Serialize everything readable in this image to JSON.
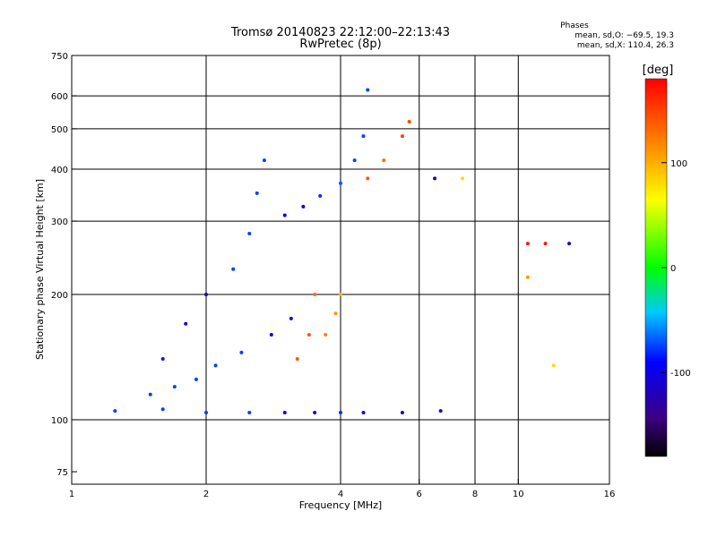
{
  "chart_data": {
    "type": "scatter",
    "title": "Tromsø 20140823 22:12:00–22:13:43",
    "subtitle": "RwPretec (8p)",
    "xlabel": "Frequency [MHz]",
    "ylabel": "Stationary phase Virtual Height [km]",
    "x_scale": "log",
    "y_scale": "log",
    "xlim": [
      1,
      16
    ],
    "ylim": [
      70,
      750
    ],
    "x_ticks": [
      1,
      2,
      4,
      6,
      8,
      10,
      16
    ],
    "y_ticks": [
      75,
      100,
      200,
      300,
      400,
      500,
      600,
      750
    ],
    "x_grid": [
      2,
      4,
      6,
      8,
      10
    ],
    "y_grid": [
      100,
      200,
      300,
      400,
      500,
      600
    ],
    "grid": true,
    "phases_box": {
      "title": "Phases",
      "line1": "mean, sd,O: −69.5, 19.3",
      "line2": "mean, sd,X: 110.4, 26.3"
    },
    "colorbar": {
      "label": "[deg]",
      "range": [
        -180,
        180
      ],
      "ticks": [
        100,
        0,
        -100
      ],
      "colormap": "rainbow"
    },
    "series": [
      {
        "values": [
          {
            "x": 1.25,
            "y": 105,
            "phase": -75
          },
          {
            "x": 1.6,
            "y": 106,
            "phase": -75
          },
          {
            "x": 2.0,
            "y": 104,
            "phase": -75
          },
          {
            "x": 2.5,
            "y": 104,
            "phase": -75
          },
          {
            "x": 3.0,
            "y": 104,
            "phase": -110
          },
          {
            "x": 3.5,
            "y": 104,
            "phase": -110
          },
          {
            "x": 4.0,
            "y": 104,
            "phase": -80
          },
          {
            "x": 4.5,
            "y": 104,
            "phase": -90
          },
          {
            "x": 5.5,
            "y": 104,
            "phase": -100
          },
          {
            "x": 6.7,
            "y": 105,
            "phase": -120
          }
        ]
      },
      {
        "values": [
          {
            "x": 1.5,
            "y": 115,
            "phase": -75
          },
          {
            "x": 1.7,
            "y": 120,
            "phase": -75
          },
          {
            "x": 1.9,
            "y": 125,
            "phase": -75
          },
          {
            "x": 2.1,
            "y": 135,
            "phase": -75
          },
          {
            "x": 2.4,
            "y": 145,
            "phase": -75
          },
          {
            "x": 2.8,
            "y": 160,
            "phase": -110
          },
          {
            "x": 3.1,
            "y": 175,
            "phase": -110
          }
        ]
      },
      {
        "values": [
          {
            "x": 1.6,
            "y": 140,
            "phase": -85
          },
          {
            "x": 1.8,
            "y": 170,
            "phase": -110
          },
          {
            "x": 2.0,
            "y": 200,
            "phase": -110
          },
          {
            "x": 2.3,
            "y": 230,
            "phase": -75
          },
          {
            "x": 2.5,
            "y": 280,
            "phase": -75
          },
          {
            "x": 2.6,
            "y": 350,
            "phase": -75
          },
          {
            "x": 2.7,
            "y": 420,
            "phase": -75
          }
        ]
      },
      {
        "values": [
          {
            "x": 3.0,
            "y": 310,
            "phase": -90
          },
          {
            "x": 3.3,
            "y": 325,
            "phase": -100
          },
          {
            "x": 3.6,
            "y": 345,
            "phase": -80
          },
          {
            "x": 4.0,
            "y": 370,
            "phase": -70
          },
          {
            "x": 4.3,
            "y": 420,
            "phase": -75
          },
          {
            "x": 4.5,
            "y": 480,
            "phase": -75
          },
          {
            "x": 4.6,
            "y": 620,
            "phase": -75
          }
        ]
      },
      {
        "values": [
          {
            "x": 3.2,
            "y": 140,
            "phase": 140
          },
          {
            "x": 3.4,
            "y": 160,
            "phase": 140
          },
          {
            "x": 3.5,
            "y": 200,
            "phase": 130
          },
          {
            "x": 3.7,
            "y": 160,
            "phase": 120
          },
          {
            "x": 3.9,
            "y": 180,
            "phase": 110
          },
          {
            "x": 4.0,
            "y": 200,
            "phase": 100
          }
        ]
      },
      {
        "values": [
          {
            "x": 4.6,
            "y": 380,
            "phase": 140
          },
          {
            "x": 5.0,
            "y": 420,
            "phase": 130
          },
          {
            "x": 5.5,
            "y": 480,
            "phase": 150
          },
          {
            "x": 5.7,
            "y": 520,
            "phase": 150
          }
        ]
      },
      {
        "values": [
          {
            "x": 6.5,
            "y": 380,
            "phase": -120
          },
          {
            "x": 7.5,
            "y": 380,
            "phase": 80
          },
          {
            "x": 10.5,
            "y": 265,
            "phase": 170
          },
          {
            "x": 11.5,
            "y": 265,
            "phase": 170
          },
          {
            "x": 13.0,
            "y": 265,
            "phase": -120
          },
          {
            "x": 10.5,
            "y": 220,
            "phase": 110
          },
          {
            "x": 12.0,
            "y": 135,
            "phase": 80
          }
        ]
      }
    ]
  }
}
